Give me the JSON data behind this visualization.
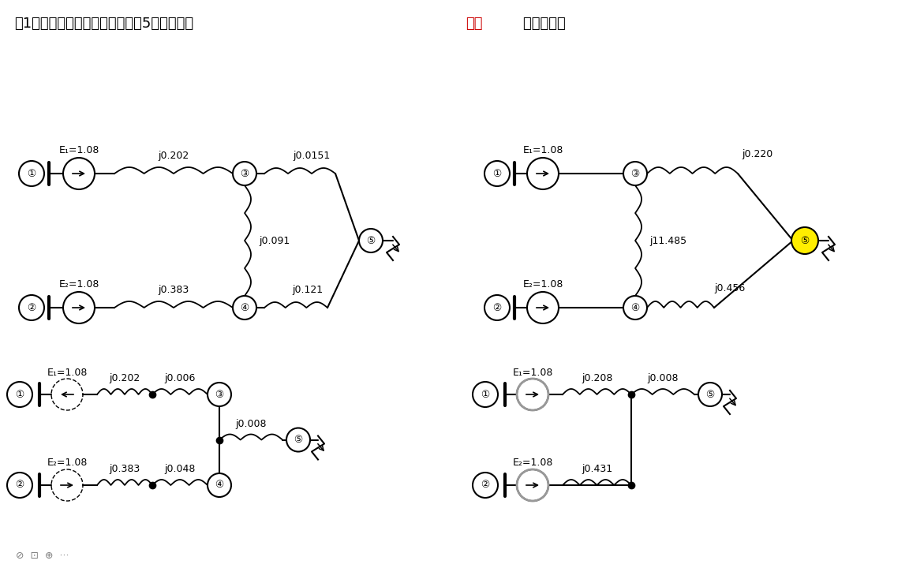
{
  "bg_color": "#ffffff",
  "header": {
    "text1": "题1： 求下图中各电源对短路点5的转移阻抗",
    "text2": "解：",
    "text3": "如下如变换",
    "color1": "#000000",
    "color2": "#cc0000",
    "color3": "#000000"
  }
}
